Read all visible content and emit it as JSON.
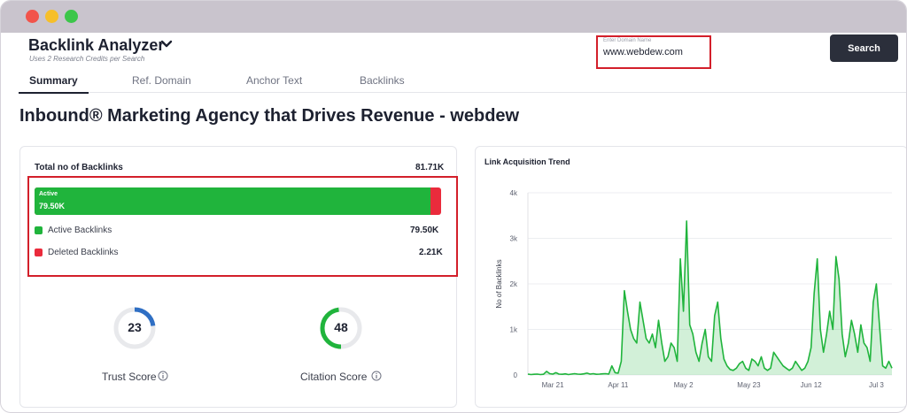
{
  "window": {
    "controls": [
      "close",
      "minimize",
      "maximize"
    ]
  },
  "header": {
    "title": "Backlink Analyzer",
    "subtitle": "Uses 2 Research Credits per Search",
    "dropdown_icon": "chevron-down-icon"
  },
  "search": {
    "placeholder": "Enter Domain Name",
    "value": "www.webdew.com",
    "button_label": "Search"
  },
  "tabs": [
    {
      "label": "Summary",
      "active": true
    },
    {
      "label": "Ref. Domain",
      "active": false
    },
    {
      "label": "Anchor Text",
      "active": false
    },
    {
      "label": "Backlinks",
      "active": false
    }
  ],
  "page_title": "Inbound® Marketing Agency that Drives Revenue - webdew",
  "summary": {
    "total_label": "Total no of Backlinks",
    "total_value": "81.71K",
    "bar_label": "Active",
    "bar_value": "79.50K",
    "active_fraction": 0.973,
    "active_label": "Active Backlinks",
    "active_value": "79.50K",
    "deleted_label": "Deleted Backlinks",
    "deleted_value": "2.21K",
    "colors": {
      "active": "#20b43c",
      "deleted": "#ea2b3c"
    }
  },
  "scores": {
    "trust": {
      "label": "Trust Score",
      "value": "23",
      "fraction": 0.23,
      "color": "#2f6fc4",
      "icon": "info-icon"
    },
    "citation": {
      "label": "Citation Score",
      "value": "48",
      "fraction": 0.48,
      "color": "#20b43c",
      "icon": "info-icon"
    }
  },
  "chart_data": {
    "type": "area",
    "title": "Link Acquisition Trend",
    "ylabel": "No of Backlinks",
    "xlabel": "",
    "ylim": [
      0,
      4000
    ],
    "yticks": [
      "0",
      "1k",
      "2k",
      "3k",
      "4k"
    ],
    "xticks": [
      "Mar 21",
      "Apr 11",
      "May 2",
      "May 23",
      "Jun 12",
      "Jul 3"
    ],
    "xtick_index": [
      8,
      29,
      50,
      71,
      91,
      112
    ],
    "color": "#20b43c",
    "grid": true,
    "series": [
      {
        "values": [
          20,
          10,
          15,
          20,
          10,
          15,
          80,
          30,
          20,
          50,
          20,
          15,
          25,
          10,
          20,
          30,
          20,
          15,
          25,
          40,
          20,
          30,
          15,
          20,
          25,
          30,
          20,
          200,
          50,
          40,
          300,
          1850,
          1400,
          1000,
          800,
          700,
          1600,
          1200,
          800,
          700,
          900,
          600,
          1200,
          700,
          300,
          400,
          700,
          600,
          300,
          2550,
          1400,
          3380,
          1100,
          900,
          500,
          300,
          700,
          1000,
          400,
          300,
          1300,
          1600,
          800,
          350,
          200,
          120,
          100,
          150,
          250,
          300,
          150,
          100,
          350,
          300,
          200,
          400,
          150,
          100,
          150,
          500,
          400,
          300,
          200,
          150,
          100,
          150,
          300,
          200,
          100,
          150,
          300,
          600,
          1800,
          2550,
          1000,
          500,
          900,
          1400,
          1000,
          2600,
          2100,
          900,
          400,
          700,
          1200,
          900,
          500,
          1100,
          700,
          600,
          300,
          1600,
          2000,
          1100,
          200,
          150,
          300,
          150
        ]
      }
    ]
  }
}
